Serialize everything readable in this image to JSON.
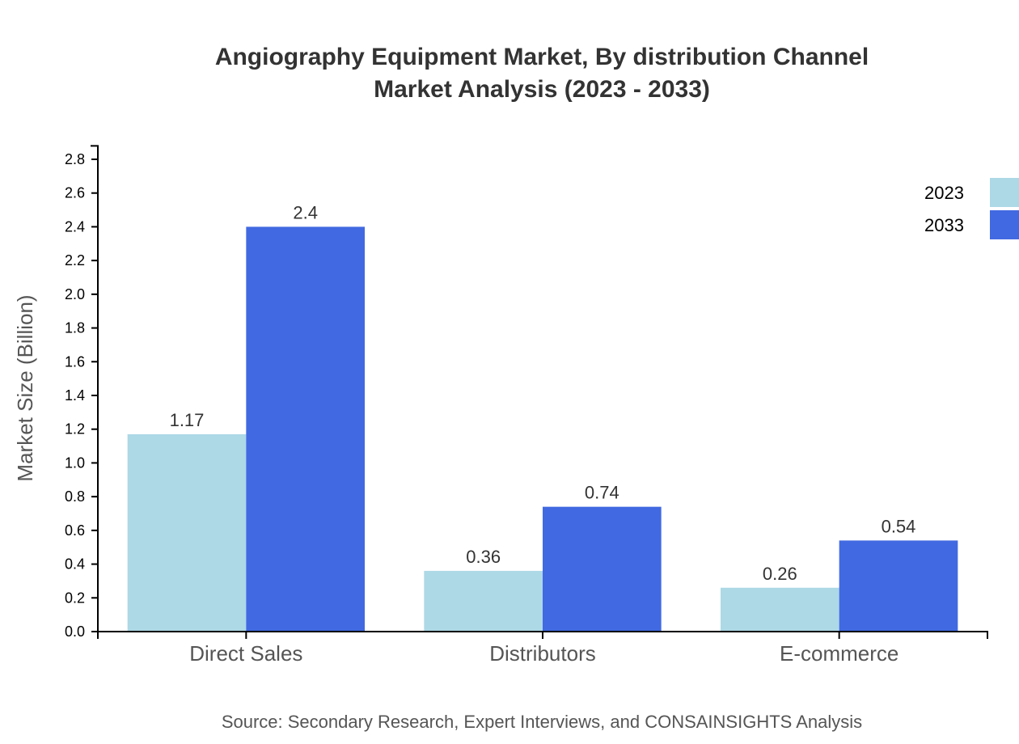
{
  "chart_data": {
    "type": "bar",
    "title": [
      "Angiography Equipment Market, By distribution Channel",
      "Market Analysis (2023 - 2033)"
    ],
    "xlabel": "",
    "ylabel": "Market Size (Billion)",
    "ylim": [
      0,
      2.88
    ],
    "yticks": [
      "0.0",
      "0.2",
      "0.4",
      "0.6",
      "0.8",
      "1.0",
      "1.2",
      "1.4",
      "1.6",
      "1.8",
      "2.0",
      "2.2",
      "2.4",
      "2.6",
      "2.8"
    ],
    "categories": [
      "Direct Sales",
      "Distributors",
      "E-commerce"
    ],
    "series": [
      {
        "name": "2023",
        "values": [
          1.17,
          0.36,
          0.26
        ],
        "labels": [
          "1.17",
          "0.36",
          "0.26"
        ],
        "color": "#add8e6"
      },
      {
        "name": "2033",
        "values": [
          2.4,
          0.74,
          0.54
        ],
        "labels": [
          "2.4",
          "0.74",
          "0.54"
        ],
        "color": "#4169e1"
      }
    ],
    "legend": "top-right",
    "grid": false
  },
  "source": "Source: Secondary Research, Expert Interviews, and CONSAINSIGHTS Analysis"
}
